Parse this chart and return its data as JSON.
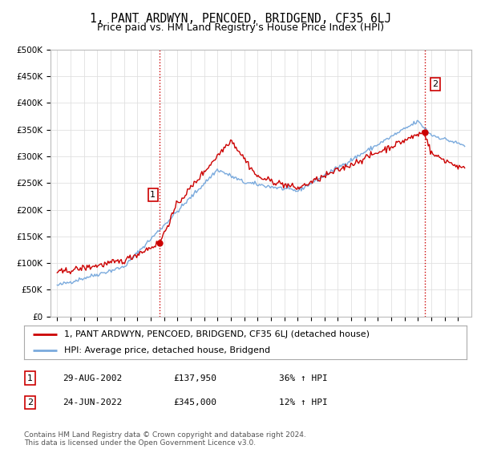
{
  "title": "1, PANT ARDWYN, PENCOED, BRIDGEND, CF35 6LJ",
  "subtitle": "Price paid vs. HM Land Registry's House Price Index (HPI)",
  "ylabel_ticks": [
    "£0",
    "£50K",
    "£100K",
    "£150K",
    "£200K",
    "£250K",
    "£300K",
    "£350K",
    "£400K",
    "£450K",
    "£500K"
  ],
  "ytick_values": [
    0,
    50000,
    100000,
    150000,
    200000,
    250000,
    300000,
    350000,
    400000,
    450000,
    500000
  ],
  "xlim_start": 1994.5,
  "xlim_end": 2026.0,
  "ylim": [
    0,
    500000
  ],
  "red_line_color": "#cc0000",
  "blue_line_color": "#7aaadd",
  "vline_color": "#cc0000",
  "marker1_x": 2002.667,
  "marker1_y": 137950,
  "marker2_x": 2022.5,
  "marker2_y": 345000,
  "legend_red_label": "1, PANT ARDWYN, PENCOED, BRIDGEND, CF35 6LJ (detached house)",
  "legend_blue_label": "HPI: Average price, detached house, Bridgend",
  "table_row1": [
    "1",
    "29-AUG-2002",
    "£137,950",
    "36% ↑ HPI"
  ],
  "table_row2": [
    "2",
    "24-JUN-2022",
    "£345,000",
    "12% ↑ HPI"
  ],
  "footer_text": "Contains HM Land Registry data © Crown copyright and database right 2024.\nThis data is licensed under the Open Government Licence v3.0.",
  "background_color": "#ffffff",
  "grid_color": "#e0e0e0",
  "title_fontsize": 10.5,
  "subtitle_fontsize": 9,
  "tick_fontsize": 7.5,
  "legend_fontsize": 8
}
